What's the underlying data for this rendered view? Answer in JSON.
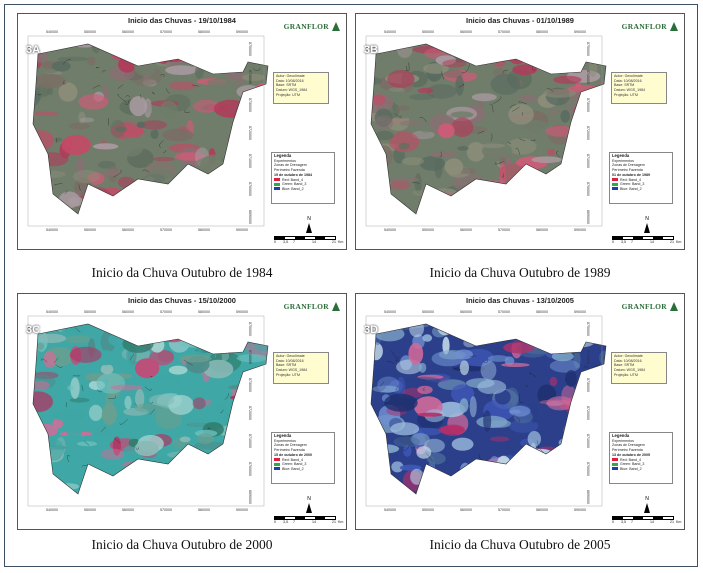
{
  "panels": [
    {
      "tag": "3A",
      "title": "Inicio das Chuvas - 19/10/1984",
      "caption": "Inicio da Chuva Outubro de 1984",
      "logo": "GRANFLOR",
      "meta": [
        "Autor: Geoclimate",
        "Data: 10/08/2016",
        "Base: SRTM",
        "Datum: WGS_1984",
        "Projeção: UTM"
      ],
      "legend_title": "Legenda",
      "legend_items": [
        "Experimentos",
        "Zonas de Drenagem",
        "Perímetro Fazenda"
      ],
      "legend_date": "19 de outubro de 1984",
      "bands": [
        "Red:  Band_4",
        "Green: Band_3",
        "Blue:  Band_2"
      ],
      "palette": "dry"
    },
    {
      "tag": "3B",
      "title": "Inicio das Chuvas - 01/10/1989",
      "caption": "Inicio da Chuva Outubro de 1989",
      "logo": "GRANFLOR",
      "meta": [
        "Autor: Geoclimate",
        "Data: 10/08/2016",
        "Base: SRTM",
        "Datum: WGS_1984",
        "Projeção: UTM"
      ],
      "legend_title": "Legenda",
      "legend_items": [
        "Experimentos",
        "Zonas de Drenagem",
        "Perímetro Fazenda"
      ],
      "legend_date": "01 de outubro de 1989",
      "bands": [
        "Red:  Band_4",
        "Green: Band_3",
        "Blue:  Band_2"
      ],
      "palette": "dry"
    },
    {
      "tag": "3C",
      "title": "Inicio das Chuvas - 15/10/2000",
      "caption": "Inicio da Chuva Outubro de 2000",
      "logo": "GRANFLOR",
      "meta": [
        "Autor: Geoclimate",
        "Data: 10/08/2016",
        "Base: SRTM",
        "Datum: WGS_1984",
        "Projeção: UTM"
      ],
      "legend_title": "Legenda",
      "legend_items": [
        "Experimentos",
        "Zonas de Drenagem",
        "Perímetro Fazenda"
      ],
      "legend_date": "15 de outubro de 2000",
      "bands": [
        "Red:  Band_4",
        "Green: Band_3",
        "Blue:  Band_2"
      ],
      "palette": "wet"
    },
    {
      "tag": "3D",
      "title": "Inicio das Chuvas - 13/10/2005",
      "caption": "Inicio da Chuva Outubro de 2005",
      "logo": "GRANFLOR",
      "meta": [
        "Autor: Geoclimate",
        "Data: 10/08/2016",
        "Base: SRTM",
        "Datum: WGS_1984",
        "Projeção: UTM"
      ],
      "legend_title": "Legenda",
      "legend_items": [
        "Experimentos",
        "Zonas de Drenagem",
        "Perímetro Fazenda"
      ],
      "legend_date": "13 de outubro de 2005",
      "bands": [
        "Red:  Band_4",
        "Green: Band_3",
        "Blue:  Band_2"
      ],
      "palette": "blue"
    }
  ],
  "x_ticks": [
    "540000",
    "550000",
    "560000",
    "570000",
    "580000",
    "590000"
  ],
  "y_ticks": [
    "8750000",
    "8740000",
    "8730000",
    "8720000",
    "8710000",
    "8700000",
    "8690000"
  ],
  "scale_labels": [
    "0",
    "3,5",
    "7",
    "14",
    "21",
    "Km"
  ],
  "north_label": "N",
  "colors": {
    "frame": "#3c4f63",
    "logo": "#2b6e3a",
    "band_red": "#e0203a",
    "band_green": "#2fa84f",
    "band_blue": "#1f3fa8"
  }
}
